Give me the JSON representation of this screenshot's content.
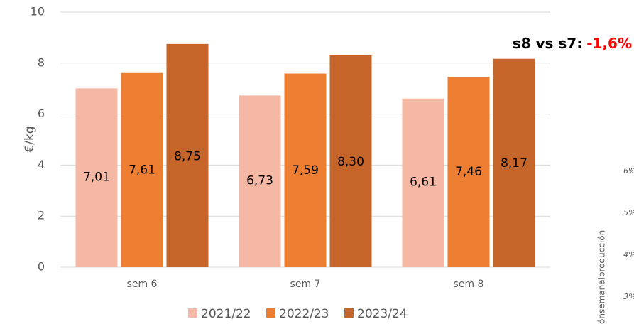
{
  "chart_data": {
    "type": "bar",
    "ylabel": "€/kg",
    "categories": [
      "sem 6",
      "sem 7",
      "sem 8"
    ],
    "series": [
      {
        "name": "2021/22",
        "color": "#f4b8a4",
        "values": [
          7.01,
          6.73,
          6.61
        ],
        "value_labels": [
          "7,01",
          "6,73",
          "6,61"
        ]
      },
      {
        "name": "2022/23",
        "color": "#ed7d31",
        "values": [
          7.61,
          7.59,
          7.46
        ],
        "value_labels": [
          "7,61",
          "7,59",
          "7,46"
        ]
      },
      {
        "name": "2023/24",
        "color": "#c5652a",
        "values": [
          8.75,
          8.3,
          8.17
        ],
        "value_labels": [
          "8,75",
          "8,30",
          "8,17"
        ]
      }
    ],
    "ylim": [
      0,
      10
    ],
    "yticks": [
      0,
      2,
      4,
      6,
      8,
      10
    ],
    "grid": true,
    "legend": "bottom",
    "annotation": {
      "text": "s8 vs s7:",
      "highlight": "-1,6%",
      "highlight_color": "#ff0000"
    }
  },
  "side_panel": {
    "axis_label": "ónsemanalproducción",
    "tick_labels": [
      "6%",
      "5%",
      "4%",
      "3%"
    ]
  }
}
